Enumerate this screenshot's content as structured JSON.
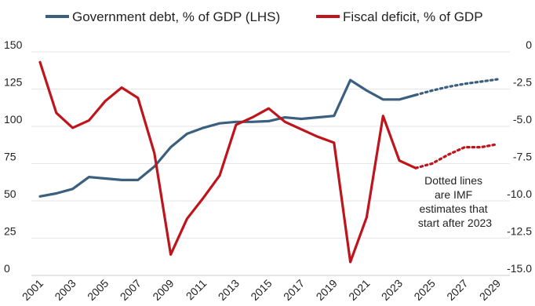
{
  "chart_data": {
    "type": "line",
    "title": "",
    "legend": {
      "placement": "top"
    },
    "left_axis": {
      "min": 0,
      "max": 150,
      "ticks": [
        "150",
        "125",
        "100",
        "75",
        "50",
        "25",
        "0"
      ]
    },
    "right_axis": {
      "min": -15,
      "max": 0,
      "ticks": [
        "0",
        "-2.5",
        "-5.0",
        "-7.5",
        "-10.0",
        "-12.5",
        "-15.0"
      ]
    },
    "x_ticks": [
      "2001",
      "2003",
      "2005",
      "2007",
      "2009",
      "2011",
      "2013",
      "2015",
      "2017",
      "2019",
      "2021",
      "2023",
      "2025",
      "2027",
      "2029"
    ],
    "x_range": [
      2001,
      2029
    ],
    "grid": "horizontal",
    "annotation": [
      "Dotted lines",
      "are IMF",
      "estimates that",
      "start after 2023"
    ],
    "series": [
      {
        "name": "Government debt, % of GDP (LHS)",
        "axis": "left",
        "color": "#3a5f7f",
        "actual": {
          "x": [
            2001,
            2002,
            2003,
            2004,
            2005,
            2006,
            2007,
            2008,
            2009,
            2010,
            2011,
            2012,
            2013,
            2014,
            2015,
            2016,
            2017,
            2018,
            2019,
            2020,
            2021,
            2022,
            2023,
            2024
          ],
          "y": [
            53,
            55,
            58,
            66,
            65,
            64,
            64,
            73,
            86,
            95,
            99,
            102,
            103,
            103,
            103.5,
            106,
            105,
            106,
            107,
            131,
            124,
            118,
            118,
            121
          ]
        },
        "estimate": {
          "x": [
            2024,
            2025,
            2026,
            2027,
            2028,
            2029
          ],
          "y": [
            121,
            124,
            126.5,
            128.5,
            130,
            131.5
          ]
        }
      },
      {
        "name": "Fiscal deficit, % of GDP",
        "axis": "right",
        "color": "#c0141c",
        "actual": {
          "x": [
            2001,
            2002,
            2003,
            2004,
            2005,
            2006,
            2007,
            2008,
            2009,
            2010,
            2011,
            2012,
            2013,
            2014,
            2015,
            2016,
            2017,
            2018,
            2019,
            2020,
            2021,
            2022,
            2023,
            2024
          ],
          "y": [
            -0.7,
            -4.1,
            -5.1,
            -4.6,
            -3.3,
            -2.4,
            -3.1,
            -6.8,
            -13.6,
            -11.2,
            -9.8,
            -8.3,
            -4.9,
            -4.4,
            -3.8,
            -4.7,
            -5.2,
            -5.7,
            -6.1,
            -14.1,
            -11.1,
            -4.3,
            -7.3,
            -7.8
          ]
        },
        "estimate": {
          "x": [
            2024,
            2025,
            2026,
            2027,
            2028,
            2029
          ],
          "y": [
            -7.8,
            -7.5,
            -6.9,
            -6.4,
            -6.4,
            -6.2
          ]
        }
      }
    ]
  }
}
